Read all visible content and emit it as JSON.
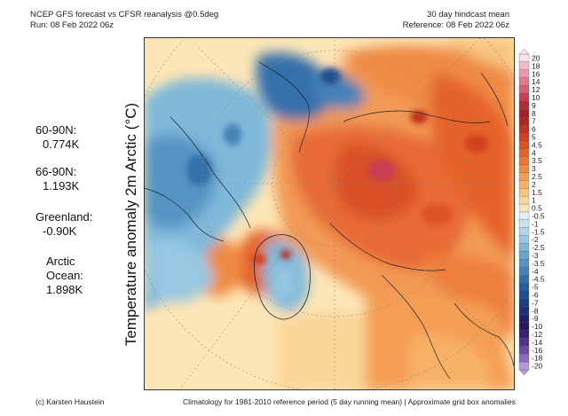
{
  "header": {
    "title": "NCEP GFS forecast vs CFSR reanalysis @0.5deg",
    "run": "Run: 08 Feb 2022 06z",
    "mean_label": "30 day hindcast mean",
    "reference": "Reference: 08 Feb 2022 06z"
  },
  "stats": [
    {
      "label": "60-90N:",
      "value": "0.774K"
    },
    {
      "label": "66-90N:",
      "value": "1.193K"
    },
    {
      "label": "Greenland:",
      "value": "-0.90K"
    },
    {
      "label": "Arctic",
      "label2": "Ocean:",
      "value": "1.898K"
    }
  ],
  "axis_label": "Temperature anomaly 2m Arctic (°C)",
  "colorbar": {
    "labels": [
      "20",
      "18",
      "16",
      "14",
      "12",
      "10",
      "9",
      "8",
      "7",
      "6",
      "5",
      "4.5",
      "4",
      "3.5",
      "3",
      "2.5",
      "2",
      "1.5",
      "1",
      "0.5",
      "-0.5",
      "-1",
      "-1.5",
      "-2",
      "-2.5",
      "-3",
      "-3.5",
      "-4",
      "-4.5",
      "-5",
      "-6",
      "-7",
      "-8",
      "-9",
      "-10",
      "-12",
      "-14",
      "-16",
      "-18",
      "-20"
    ],
    "colors": [
      "#fbe0ea",
      "#f4b8c8",
      "#ee98b0",
      "#e47892",
      "#d85a74",
      "#c83e52",
      "#b52a36",
      "#a3202a",
      "#b3261f",
      "#c2331f",
      "#d2401f",
      "#dd5224",
      "#e5642b",
      "#ec7633",
      "#f08a40",
      "#f49e52",
      "#f7b267",
      "#f9c47f",
      "#fbd699",
      "#fde6b6",
      "#dff0f7",
      "#c8e4f1",
      "#b0d6ea",
      "#98c8e2",
      "#7fb8d9",
      "#68a6cf",
      "#5594c4",
      "#4482b8",
      "#3470ab",
      "#275f9e",
      "#1f4f90",
      "#1c3f83",
      "#1d2f76",
      "#201f68",
      "#2a185c",
      "#3a2070",
      "#503488",
      "#6a4ca2",
      "#8a6cc0",
      "#b49adc"
    ]
  },
  "footer": {
    "credit": "(c) Karsten Haustein",
    "note": "Climatology for 1981-2010 reference period (5 day running mean) | Approximate grid box anomalies"
  }
}
